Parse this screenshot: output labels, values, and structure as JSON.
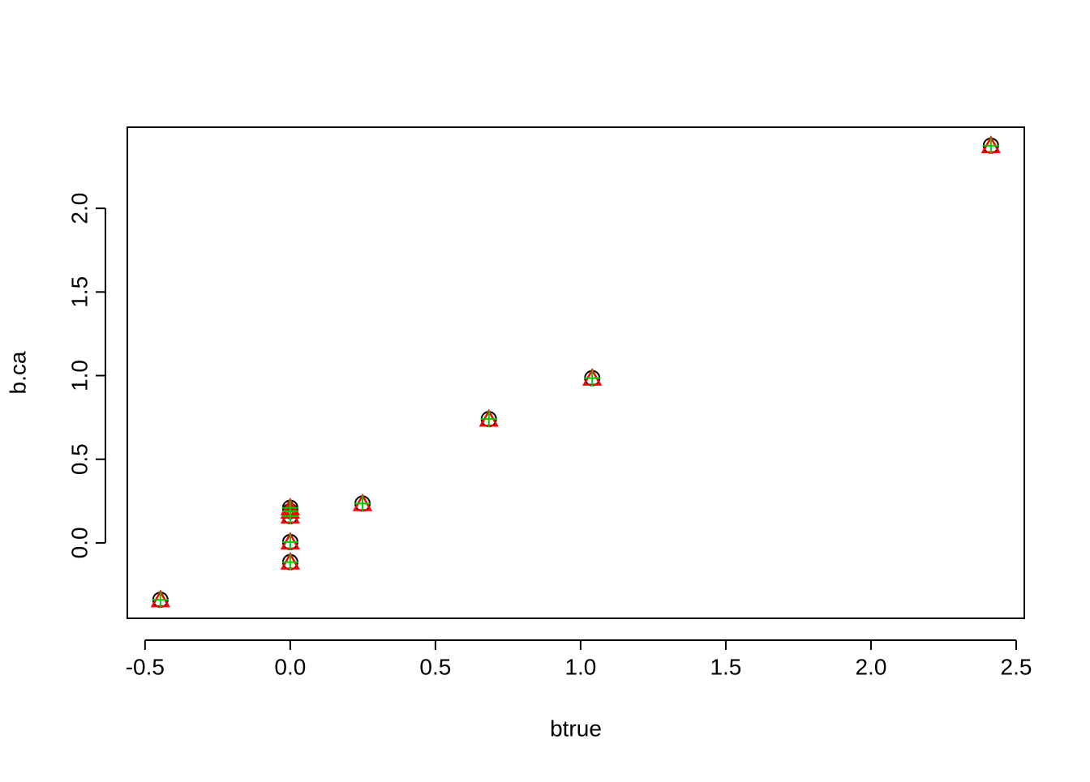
{
  "chart_data": {
    "type": "scatter",
    "x_label": "btrue",
    "y_label": "b.ca",
    "x": [
      -0.447,
      0,
      0,
      0,
      0,
      0,
      0.249,
      0.684,
      1.04,
      2.413
    ],
    "series": [
      {
        "color": "#000000",
        "marker": "circle",
        "values": [
          -0.34,
          0.21,
          0.19,
          0.16,
          0.005,
          -0.115,
          0.235,
          0.74,
          0.985,
          2.375
        ]
      },
      {
        "color": "#ff0000",
        "marker": "triangle",
        "values": [
          -0.345,
          0.205,
          0.185,
          0.155,
          0.0,
          -0.12,
          0.23,
          0.735,
          0.98,
          2.37
        ]
      },
      {
        "color": "#00cc00",
        "marker": "plus",
        "values": [
          -0.34,
          0.21,
          0.19,
          0.16,
          0.005,
          -0.115,
          0.235,
          0.74,
          0.985,
          2.375
        ]
      }
    ],
    "xlim": [
      -0.561,
      2.528
    ],
    "ylim": [
      -0.451,
      2.485
    ],
    "xticks": [
      {
        "value": -0.5,
        "label": "-0.5"
      },
      {
        "value": 0,
        "label": "0.0"
      },
      0.5,
      {
        "value": 1,
        "label": "1.0"
      },
      1.5,
      {
        "value": 2,
        "label": "2.0"
      },
      2.5
    ],
    "yticks": [
      {
        "value": 0,
        "label": "0.0"
      },
      0.5,
      {
        "value": 1,
        "label": "1.0"
      },
      1.5,
      {
        "value": 2,
        "label": "2.0"
      }
    ]
  }
}
